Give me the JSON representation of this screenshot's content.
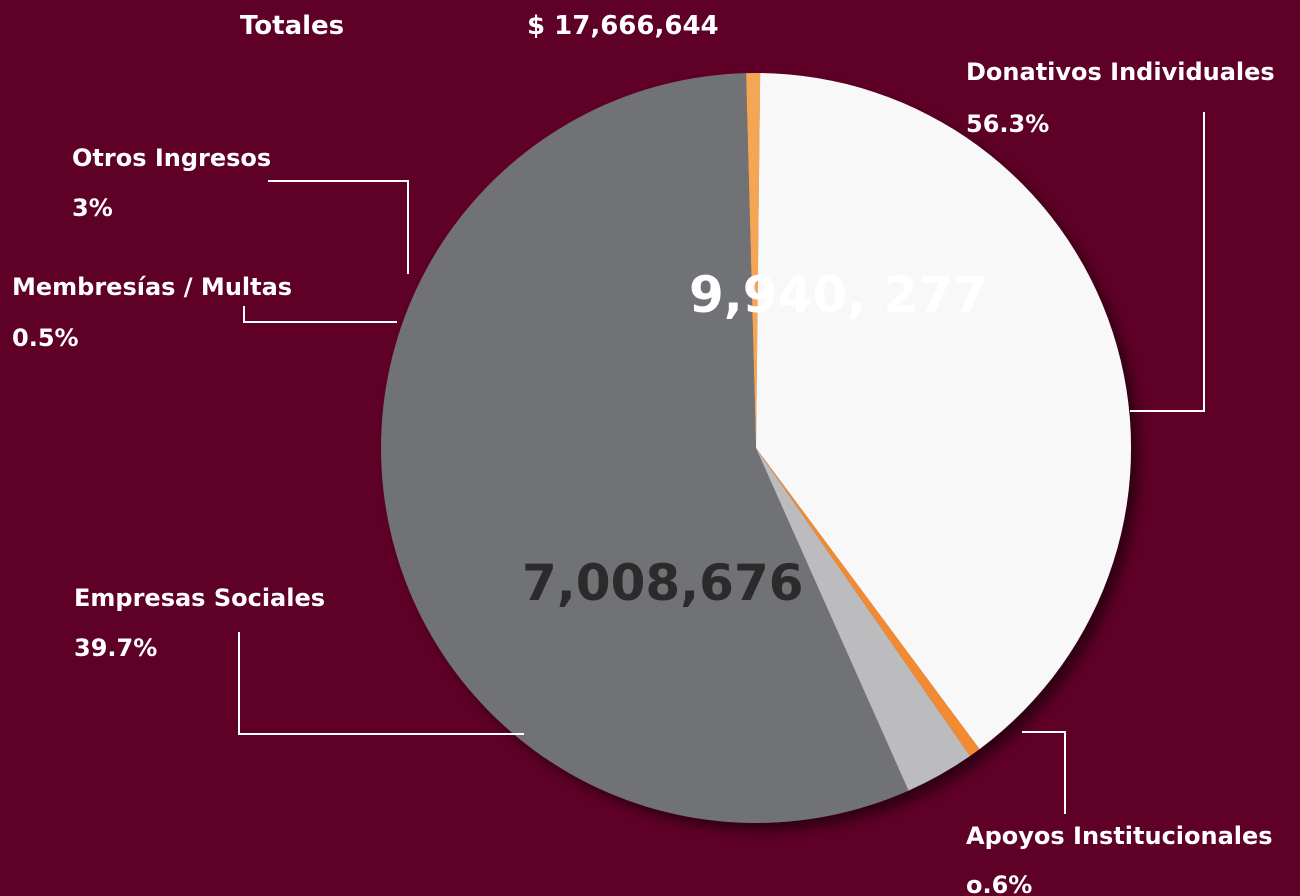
{
  "header": {
    "total_label": "Totales",
    "total_value": "$ 17,666,644"
  },
  "chart_data": {
    "type": "pie",
    "title": "",
    "total": 17666644,
    "slices": [
      {
        "name": "Donativos Individuales",
        "percent_label": "56.3%",
        "percent": 56.3,
        "value_label": "9,940, 277",
        "value": 9940277,
        "color": "#717275"
      },
      {
        "name": "Apoyos Institucionales",
        "percent_label": "o.6%",
        "percent": 0.6,
        "value_label": "",
        "value": null,
        "color": "#f5a654"
      },
      {
        "name": "Empresas Sociales",
        "percent_label": "39.7%",
        "percent": 39.7,
        "value_label": "7,008,676",
        "value": 7008676,
        "color": "#f8f8f8"
      },
      {
        "name": "Membresías / Multas",
        "percent_label": "0.5%",
        "percent": 0.5,
        "value_label": "",
        "value": null,
        "color": "#f28a33"
      },
      {
        "name": "Otros Ingresos",
        "percent_label": "3%",
        "percent": 3,
        "value_label": "",
        "value": null,
        "color": "#bcbcbe"
      }
    ]
  }
}
